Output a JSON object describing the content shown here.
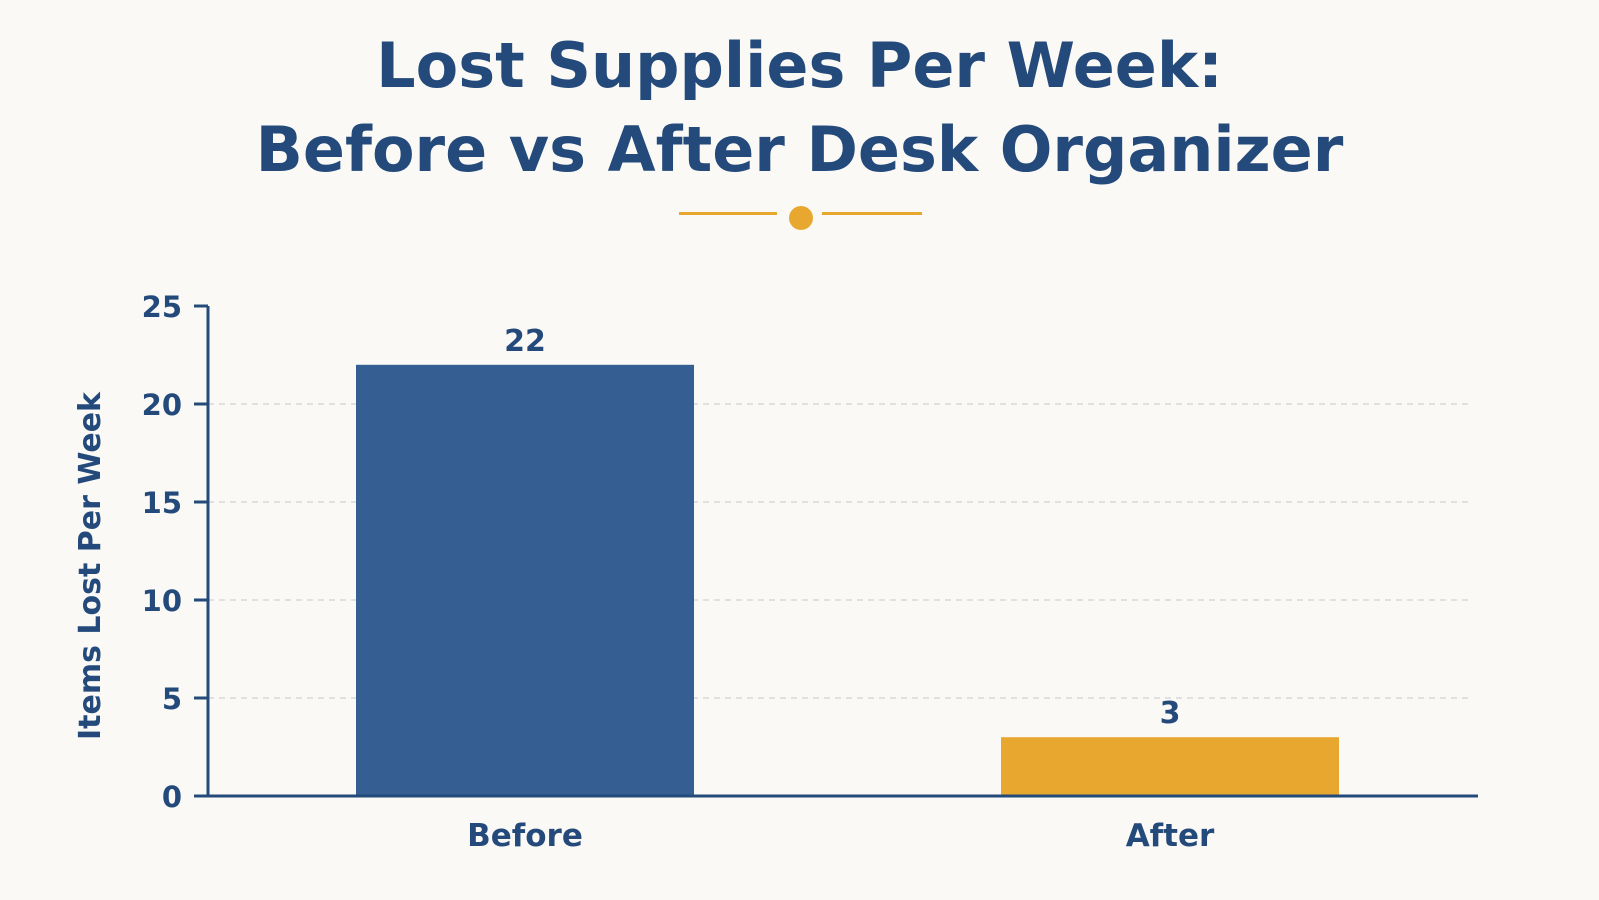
{
  "chart_data": {
    "type": "bar",
    "title": [
      "Lost Supplies Per Week:",
      "Before vs After Desk Organizer"
    ],
    "xlabel": "",
    "ylabel": "Items Lost Per Week",
    "categories": [
      "Before",
      "After"
    ],
    "values": [
      22,
      3
    ],
    "data_labels": [
      "22",
      "3"
    ],
    "ylim": [
      0,
      25
    ],
    "yticks": [
      0,
      5,
      10,
      15,
      20,
      25
    ],
    "ytick_labels": [
      "0",
      "5",
      "10",
      "15",
      "20",
      "25"
    ],
    "grid": "horizontal dashed",
    "colors": {
      "bars": [
        "#355f93",
        "#e8a830"
      ],
      "text": "#234a7a",
      "axis": "#234a7a",
      "grid": "#d8d8d8",
      "accent": "#e8a830"
    }
  }
}
